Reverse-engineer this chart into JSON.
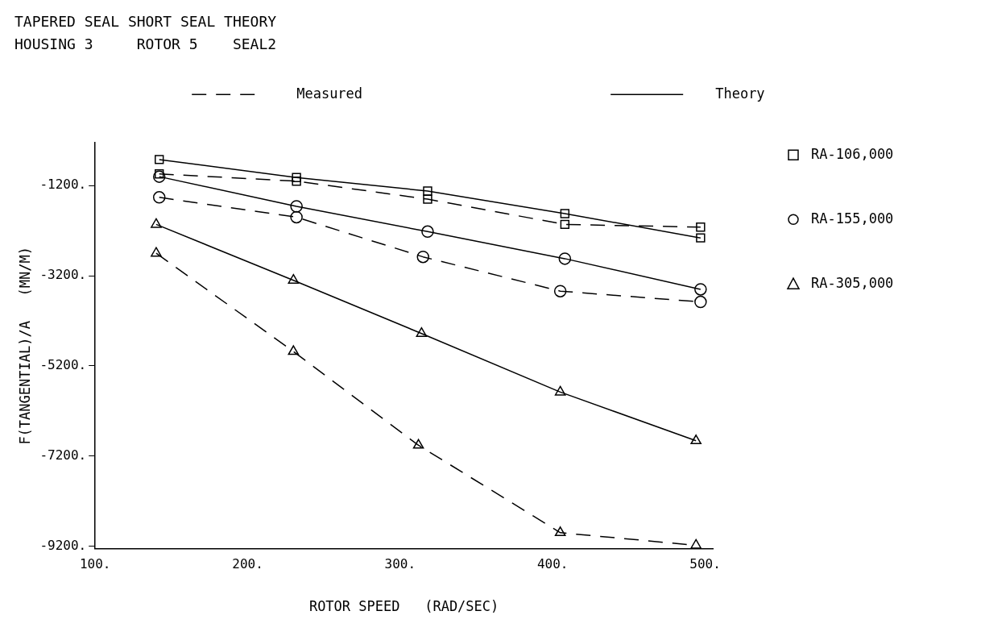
{
  "chart_data": {
    "type": "line",
    "title": "TAPERED SEAL SHORT SEAL THEORY",
    "subtitle": "HOUSING 3     ROTOR 5    SEAL2",
    "xlabel": "ROTOR SPEED   (RAD/SEC)",
    "ylabel": "F(TANGENTIAL)/A   (MN/M)",
    "annotations": [
      "Measured",
      "Theory"
    ],
    "legend": "right",
    "grid": false,
    "xlim": [
      100,
      505
    ],
    "xticks": [
      {
        "value": 100,
        "label": "100."
      },
      {
        "value": 200,
        "label": "200."
      },
      {
        "value": 300,
        "label": "300."
      },
      {
        "value": 400,
        "label": "400."
      },
      {
        "value": 500,
        "label": "500."
      }
    ],
    "ylim": [
      -9250,
      -250
    ],
    "yticks": [
      {
        "value": -1200,
        "label": "-1200."
      },
      {
        "value": -3200,
        "label": "-3200."
      },
      {
        "value": -5200,
        "label": "-5200."
      },
      {
        "value": -7200,
        "label": "-7200."
      },
      {
        "value": -9200,
        "label": "-9200."
      }
    ],
    "series": [
      {
        "name": "RA-106,000",
        "color": "#000000",
        "marker": "square",
        "line_style": "dashed",
        "x": [
          142,
          232,
          318,
          408,
          497
        ],
        "values": [
          -940,
          -1100,
          -1500,
          -2060,
          -2120
        ]
      },
      {
        "color": "#000000",
        "marker": "square",
        "line_style": "solid",
        "x": [
          142,
          232,
          318,
          408,
          497
        ],
        "values": [
          -620,
          -1020,
          -1320,
          -1820,
          -2360
        ]
      },
      {
        "name": "RA-155,000",
        "color": "#000000",
        "marker": "circle",
        "line_style": "dashed",
        "x": [
          142,
          232,
          315,
          405,
          497
        ],
        "values": [
          -1460,
          -1900,
          -2780,
          -3540,
          -3780
        ]
      },
      {
        "color": "#000000",
        "marker": "circle",
        "line_style": "solid",
        "x": [
          142,
          232,
          318,
          408,
          497
        ],
        "values": [
          -1000,
          -1660,
          -2220,
          -2820,
          -3500
        ]
      },
      {
        "name": "RA-305,000",
        "color": "#000000",
        "marker": "triangle",
        "line_style": "dashed",
        "x": [
          140,
          230,
          312,
          405,
          494
        ],
        "values": [
          -2700,
          -4880,
          -6960,
          -8900,
          -9180
        ]
      },
      {
        "color": "#000000",
        "marker": "triangle",
        "line_style": "solid",
        "x": [
          140,
          230,
          314,
          405,
          494
        ],
        "values": [
          -2060,
          -3300,
          -4480,
          -5780,
          -6860
        ]
      }
    ]
  }
}
